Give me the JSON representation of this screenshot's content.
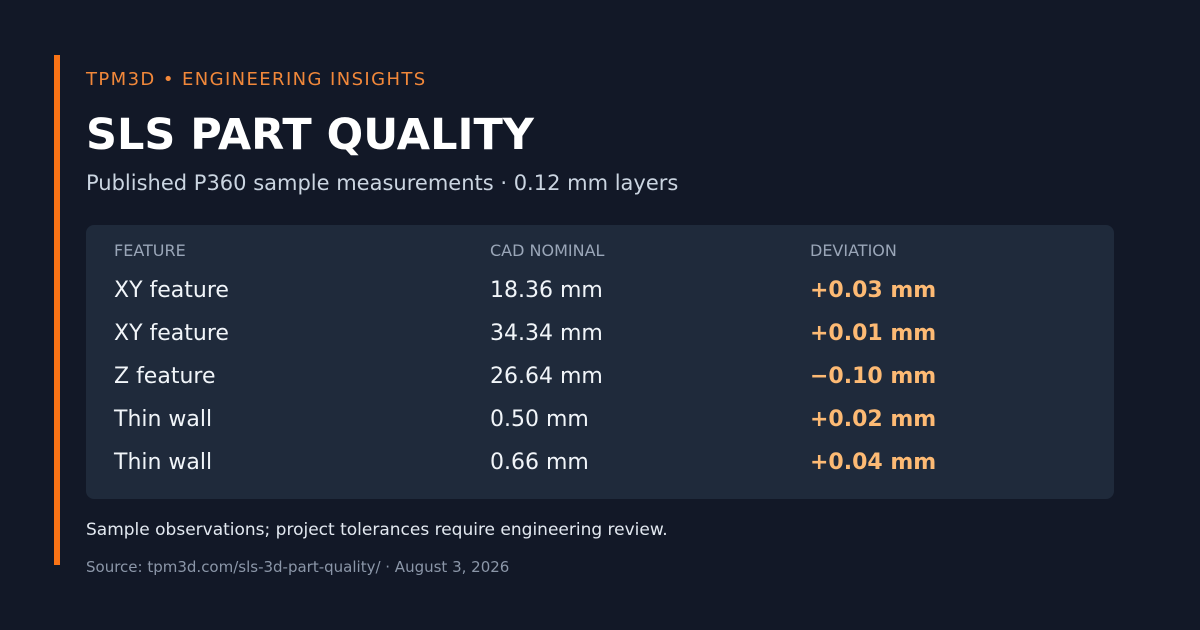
{
  "header": {
    "eyebrow": "TPM3D • ENGINEERING INSIGHTS",
    "title": "SLS PART QUALITY",
    "subtitle": "Published P360 sample measurements · 0.12 mm layers"
  },
  "table": {
    "columns": [
      "FEATURE",
      "CAD NOMINAL",
      "DEVIATION"
    ],
    "rows": [
      {
        "feature": "XY feature",
        "nominal": "18.36 mm",
        "deviation": "+0.03 mm"
      },
      {
        "feature": "XY feature",
        "nominal": "34.34 mm",
        "deviation": "+0.01 mm"
      },
      {
        "feature": "Z feature",
        "nominal": "26.64 mm",
        "deviation": "−0.10 mm"
      },
      {
        "feature": "Thin wall",
        "nominal": "0.50 mm",
        "deviation": "+0.02 mm"
      },
      {
        "feature": "Thin wall",
        "nominal": "0.66 mm",
        "deviation": "+0.04 mm"
      }
    ]
  },
  "footer": {
    "note": "Sample observations; project tolerances require engineering review.",
    "source": "Source: tpm3d.com/sls-3d-part-quality/ · August 3, 2026"
  },
  "colors": {
    "background": "#121827",
    "accent": "#f97316",
    "eyebrow": "#f2883a",
    "deviation": "#fdba74",
    "card": "#1f2a3b"
  }
}
